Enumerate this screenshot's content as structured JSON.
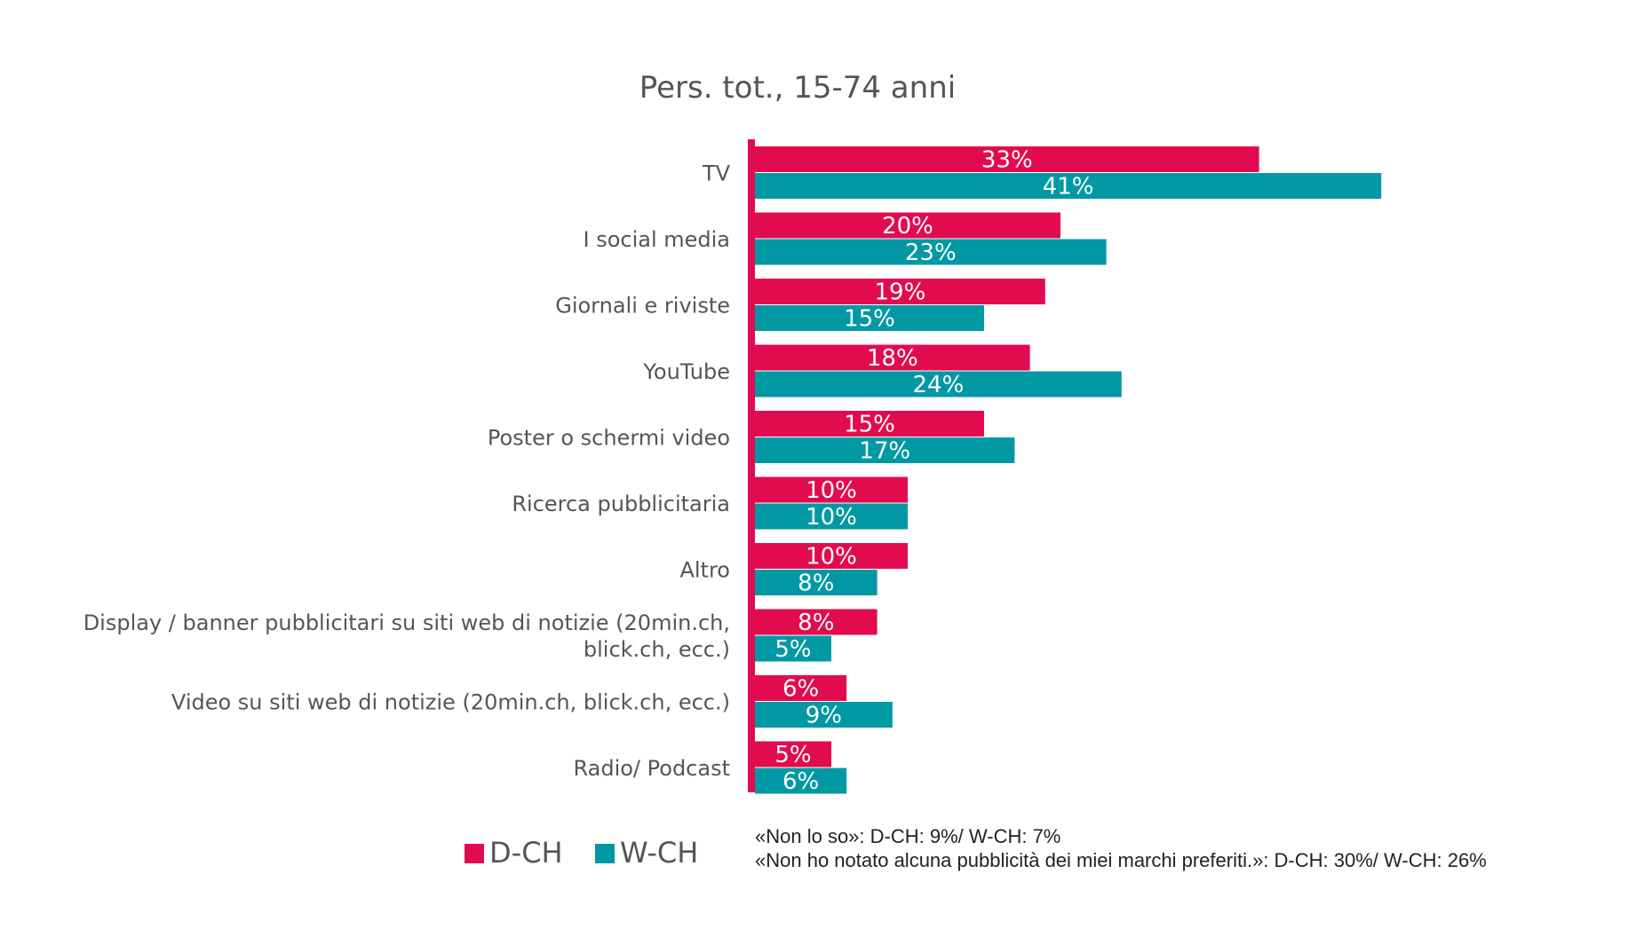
{
  "colors": {
    "d_ch": "#e30b4f",
    "w_ch": "#0099a3",
    "axis": "#e30b4f"
  },
  "chart_data": {
    "type": "bar",
    "orientation": "horizontal",
    "title": "Pers. tot., 15-74 anni",
    "xlabel": "",
    "ylabel": "",
    "xlim": [
      0,
      45
    ],
    "grid": false,
    "legend_position": "bottom",
    "categories": [
      [
        "TV"
      ],
      [
        "I social media"
      ],
      [
        "Giornali e riviste"
      ],
      [
        "YouTube"
      ],
      [
        "Poster o schermi video"
      ],
      [
        "Ricerca pubblicitaria"
      ],
      [
        "Altro"
      ],
      [
        "Display / banner pubblicitari su siti web di notizie (20min.ch,",
        "blick.ch, ecc.)"
      ],
      [
        "Video su siti web di notizie (20min.ch, blick.ch, ecc.)"
      ],
      [
        "Radio/ Podcast"
      ]
    ],
    "series": [
      {
        "name": "D-CH",
        "color": "#e30b4f",
        "values": [
          33,
          20,
          19,
          18,
          15,
          10,
          10,
          8,
          6,
          5
        ],
        "labels": [
          "33%",
          "20%",
          "19%",
          "18%",
          "15%",
          "10%",
          "10%",
          "8%",
          "6%",
          "5%"
        ]
      },
      {
        "name": "W-CH",
        "color": "#0099a3",
        "values": [
          41,
          23,
          15,
          24,
          17,
          10,
          8,
          5,
          9,
          6
        ],
        "labels": [
          "41%",
          "23%",
          "15%",
          "24%",
          "17%",
          "10%",
          "8%",
          "5%",
          "9%",
          "6%"
        ]
      }
    ],
    "notes": [
      "«Non lo so»: D-CH: 9%/ W-CH: 7%",
      "«Non ho notato alcuna pubblicità dei miei marchi preferiti.»: D-CH: 30%/ W-CH: 26%"
    ]
  }
}
